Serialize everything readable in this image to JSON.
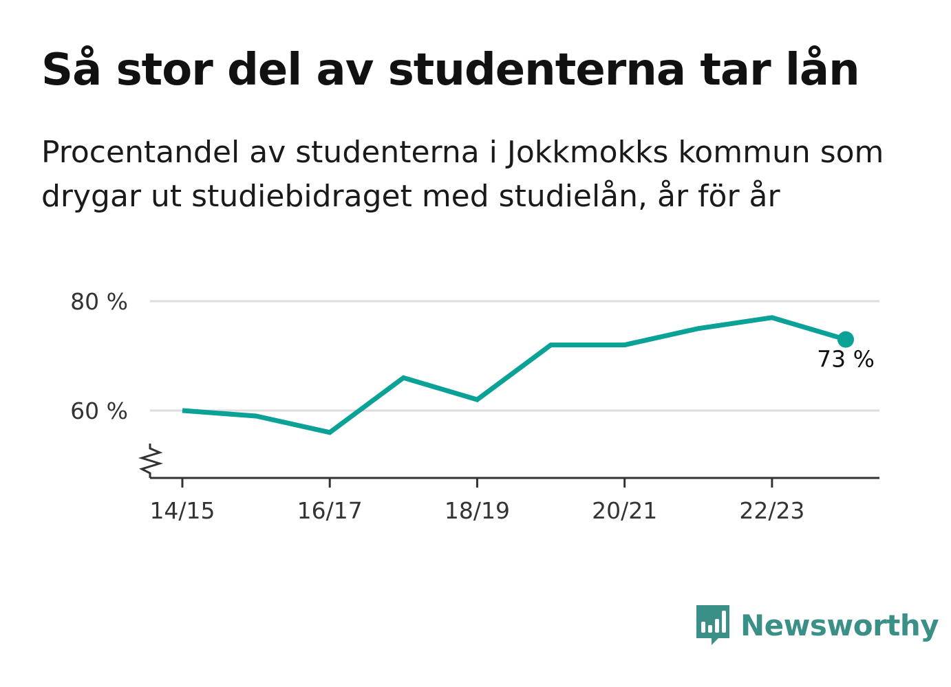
{
  "title": "Så stor del av studenterna tar lån",
  "subtitle": "Procentandel av studenterna i Jokkmokks kommun som drygar ut studiebidraget med studielån, år för år",
  "brand": {
    "name": "Newsworthy",
    "color": "#3a8f86",
    "icon": "bar-chart-speech-bubble-icon"
  },
  "chart_data": {
    "type": "line",
    "x": [
      "14/15",
      "15/16",
      "16/17",
      "17/18",
      "18/19",
      "19/20",
      "20/21",
      "21/22",
      "22/23",
      "23/24"
    ],
    "x_tick_labels": [
      "14/15",
      "16/17",
      "18/19",
      "20/21",
      "22/23"
    ],
    "series": [
      {
        "values": [
          60,
          59,
          56,
          66,
          62,
          72,
          72,
          75,
          77,
          73
        ],
        "color": "#0aa196"
      }
    ],
    "y_ticks": [
      60,
      80
    ],
    "y_tick_labels": [
      "60 %",
      "80 %"
    ],
    "ylim": [
      48,
      82
    ],
    "y_axis_break": true,
    "grid": true,
    "end_label": "73 %"
  }
}
